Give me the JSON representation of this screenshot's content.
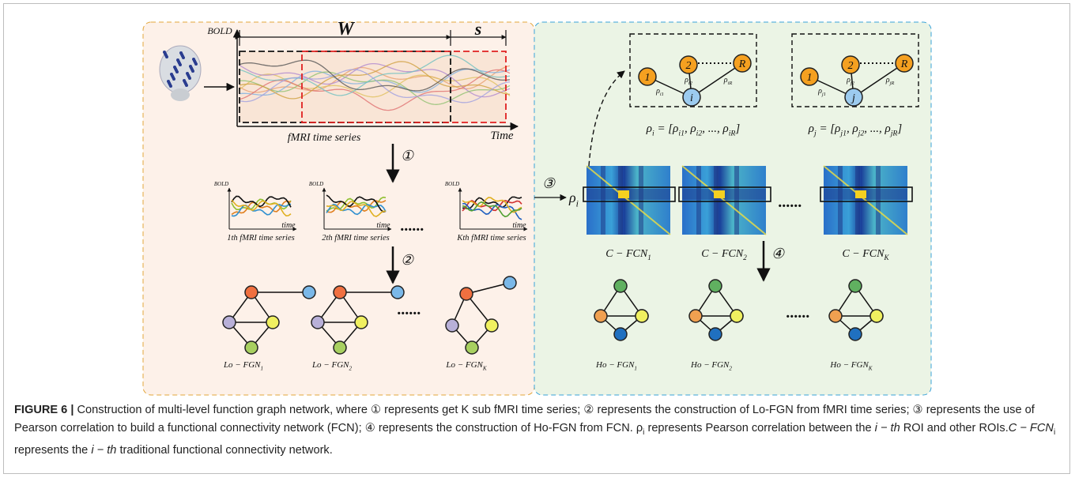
{
  "raw_series": {
    "y_label": "BOLD",
    "window_label": "W",
    "step_label": "s",
    "x_label": "Time",
    "title": "fMRI time series"
  },
  "steps": [
    "①",
    "②",
    "③",
    "④"
  ],
  "sub_series": [
    {
      "y_label": "BOLD",
      "x_label": "time",
      "title": "1th fMRI time series"
    },
    {
      "y_label": "BOLD",
      "x_label": "time",
      "title": "2th fMRI time series"
    },
    {
      "y_label": "BOLD",
      "x_label": "time",
      "title": "Kth fMRI time series"
    }
  ],
  "ellipses": [
    "......",
    "......",
    "......",
    "......"
  ],
  "lo_fgn": [
    [
      {
        "t": "Lo − FGN",
        "sub": "1"
      }
    ],
    [
      {
        "t": "Lo − FGN",
        "sub": "2"
      }
    ],
    [
      {
        "t": "Lo − FGN",
        "sub": "K"
      }
    ]
  ],
  "rho_label": [
    {
      "t": "ρ",
      "sub": "i"
    }
  ],
  "c_fcn": [
    [
      {
        "t": "C − FCN",
        "sub": "1"
      }
    ],
    [
      {
        "t": "C − FCN",
        "sub": "2"
      }
    ],
    [
      {
        "t": "C − FCN",
        "sub": "K"
      }
    ]
  ],
  "ho_fgn": [
    [
      {
        "t": "Ho − FGN",
        "sub": "1"
      }
    ],
    [
      {
        "t": "Ho − FGN",
        "sub": "2"
      }
    ],
    [
      {
        "t": "Ho − FGN",
        "sub": "K"
      }
    ]
  ],
  "node_boxes": [
    {
      "nodes": [
        "1",
        "2",
        "R",
        "i"
      ],
      "edges": [
        [
          {
            "t": "ρ",
            "sub": "i1"
          }
        ],
        [
          {
            "t": "ρ",
            "sub": "i2"
          }
        ],
        [
          {
            "t": "ρ",
            "sub": "iR"
          }
        ]
      ],
      "formula": [
        {
          "t": "ρ",
          "sub": "i"
        },
        {
          "t": " = [ρ",
          "sub": "i1"
        },
        {
          "t": ", ρ",
          "sub": "i2"
        },
        {
          "t": ", ..., ρ",
          "sub": "iR"
        },
        {
          "t": "]"
        }
      ]
    },
    {
      "nodes": [
        "1",
        "2",
        "R",
        "j"
      ],
      "edges": [
        [
          {
            "t": "ρ",
            "sub": "j1"
          }
        ],
        [
          {
            "t": "ρ",
            "sub": "j2"
          }
        ],
        [
          {
            "t": "ρ",
            "sub": "jR"
          }
        ]
      ],
      "formula": [
        {
          "t": "ρ",
          "sub": "j"
        },
        {
          "t": " = [ρ",
          "sub": "j1"
        },
        {
          "t": ", ρ",
          "sub": "j2"
        },
        {
          "t": ", ..., ρ",
          "sub": "jR"
        },
        {
          "t": "]"
        }
      ]
    }
  ],
  "caption": {
    "label": "FIGURE 6 |",
    "segments": [
      {
        "text": " Construction of multi-level function graph network, where ① represents get K sub fMRI time series; ② represents the construction of Lo-FGN from fMRI time series; ③ represents the use of Pearson correlation to build a functional connectivity network (FCN); ④ represents the construction of Ho-FGN from FCN. ρ",
        "style": "normal"
      },
      {
        "text": "i",
        "style": "sub"
      },
      {
        "text": " represents Pearson correlation between the ",
        "style": "normal"
      },
      {
        "text": "i − th",
        "style": "italic"
      },
      {
        "text": " ROI and other ROIs.",
        "style": "normal"
      },
      {
        "text": "C − FCN",
        "style": "italic"
      },
      {
        "text": "i",
        "style": "sub"
      },
      {
        "text": " represents the ",
        "style": "normal"
      },
      {
        "text": "i − th",
        "style": "italic"
      },
      {
        "text": " traditional functional connectivity network.",
        "style": "normal"
      }
    ]
  }
}
